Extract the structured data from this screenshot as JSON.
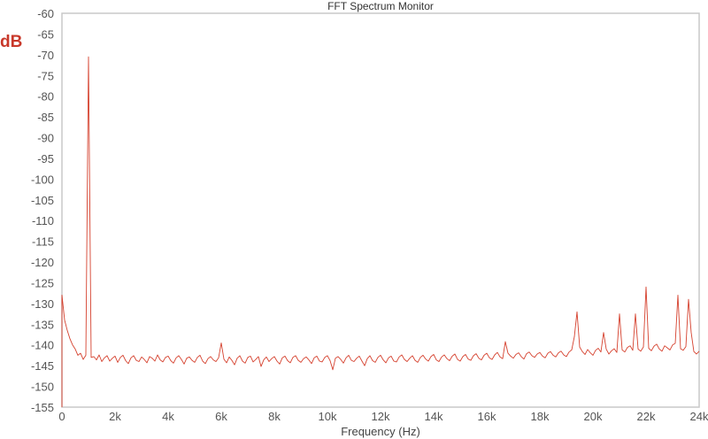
{
  "chart_data": {
    "type": "line",
    "title": "FFT Spectrum Monitor",
    "xlabel": "Frequency (Hz)",
    "ylabel": "dB",
    "xlim": [
      0,
      24000
    ],
    "ylim": [
      -155,
      -60
    ],
    "grid": false,
    "line_color": "#d5412e",
    "unit_color": "#c8382a",
    "x_ticks": [
      0,
      2000,
      4000,
      6000,
      8000,
      10000,
      12000,
      14000,
      16000,
      18000,
      20000,
      22000,
      24000
    ],
    "x_tick_labels": [
      "0",
      "2k",
      "4k",
      "6k",
      "8k",
      "10k",
      "12k",
      "14k",
      "16k",
      "18k",
      "20k",
      "22k",
      "24k"
    ],
    "y_ticks": [
      -60,
      -65,
      -70,
      -75,
      -80,
      -85,
      -90,
      -95,
      -100,
      -105,
      -110,
      -115,
      -120,
      -125,
      -130,
      -135,
      -140,
      -145,
      -150,
      -155
    ],
    "y_tick_labels": [
      "-60",
      "-65",
      "-70",
      "-75",
      "-80",
      "-85",
      "-90",
      "-95",
      "-100",
      "-105",
      "-110",
      "-115",
      "-120",
      "-125",
      "-130",
      "-135",
      "-140",
      "-145",
      "-150",
      "-155"
    ],
    "series": [
      {
        "x_start": 0,
        "x_step": 100,
        "values": [
          -128,
          -134,
          -136.5,
          -138.5,
          -140,
          -141,
          -142.5,
          -142,
          -143.5,
          -142.5,
          -70.5,
          -143,
          -142.8,
          -143.6,
          -142.4,
          -144,
          -143.1,
          -142.6,
          -143.9,
          -143.2,
          -142.7,
          -144.2,
          -143.0,
          -142.5,
          -143.8,
          -144.5,
          -143.1,
          -142.6,
          -143.7,
          -144.0,
          -142.9,
          -143.5,
          -144.3,
          -142.8,
          -143.2,
          -143.9,
          -142.4,
          -143.6,
          -144.1,
          -143.0,
          -142.7,
          -143.8,
          -144.4,
          -143.1,
          -142.6,
          -143.5,
          -144.6,
          -143.2,
          -142.9,
          -143.7,
          -144.2,
          -143.0,
          -142.5,
          -143.9,
          -144.5,
          -143.3,
          -142.8,
          -143.6,
          -144.0,
          -143.1,
          -139.5,
          -143.4,
          -144.3,
          -142.9,
          -143.7,
          -144.8,
          -143.2,
          -142.6,
          -143.9,
          -144.4,
          -143.0,
          -142.7,
          -144.1,
          -143.5,
          -142.8,
          -145.2,
          -143.6,
          -142.9,
          -144.0,
          -143.3,
          -142.8,
          -143.9,
          -144.6,
          -143.1,
          -142.7,
          -143.8,
          -144.3,
          -143.0,
          -142.6,
          -143.7,
          -144.2,
          -143.3,
          -142.9,
          -143.6,
          -144.5,
          -143.1,
          -142.7,
          -143.9,
          -144.1,
          -143.0,
          -142.6,
          -143.8,
          -146.0,
          -143.2,
          -142.8,
          -143.5,
          -144.4,
          -143.1,
          -142.5,
          -143.7,
          -144.0,
          -143.2,
          -142.7,
          -143.9,
          -145.0,
          -143.3,
          -142.6,
          -143.8,
          -144.2,
          -143.0,
          -142.5,
          -143.6,
          -144.3,
          -143.1,
          -142.7,
          -143.9,
          -144.1,
          -142.9,
          -142.4,
          -143.5,
          -144.0,
          -143.2,
          -142.6,
          -143.7,
          -144.2,
          -143.0,
          -142.5,
          -143.4,
          -143.9,
          -142.8,
          -142.3,
          -143.6,
          -144.0,
          -142.9,
          -142.4,
          -143.3,
          -143.8,
          -142.7,
          -142.2,
          -143.5,
          -143.9,
          -142.8,
          -142.3,
          -143.4,
          -143.7,
          -142.6,
          -142.1,
          -143.2,
          -143.6,
          -142.5,
          -142.0,
          -143.1,
          -143.5,
          -142.4,
          -141.8,
          -142.9,
          -143.3,
          -139.2,
          -142.0,
          -142.7,
          -143.2,
          -142.3,
          -141.9,
          -142.8,
          -143.4,
          -142.1,
          -141.7,
          -142.6,
          -143.0,
          -142.2,
          -141.8,
          -142.7,
          -143.1,
          -142.0,
          -141.6,
          -142.5,
          -142.9,
          -141.9,
          -141.5,
          -142.4,
          -142.8,
          -141.7,
          -141.2,
          -138.0,
          -132.0,
          -140.5,
          -141.6,
          -142.3,
          -141.1,
          -141.9,
          -142.5,
          -141.3,
          -140.8,
          -141.7,
          -137.0,
          -141.0,
          -142.2,
          -141.4,
          -140.9,
          -141.8,
          -132.5,
          -141.2,
          -141.7,
          -140.6,
          -140.2,
          -141.3,
          -132.5,
          -141.0,
          -141.5,
          -140.5,
          -126.0,
          -140.8,
          -141.4,
          -140.3,
          -139.8,
          -141.0,
          -141.5,
          -140.2,
          -140.7,
          -141.2,
          -140.0,
          -139.6,
          -128.0,
          -140.9,
          -141.3,
          -140.4,
          -129.0,
          -137.0,
          -141.6,
          -142.2,
          -141.5
        ]
      }
    ]
  }
}
